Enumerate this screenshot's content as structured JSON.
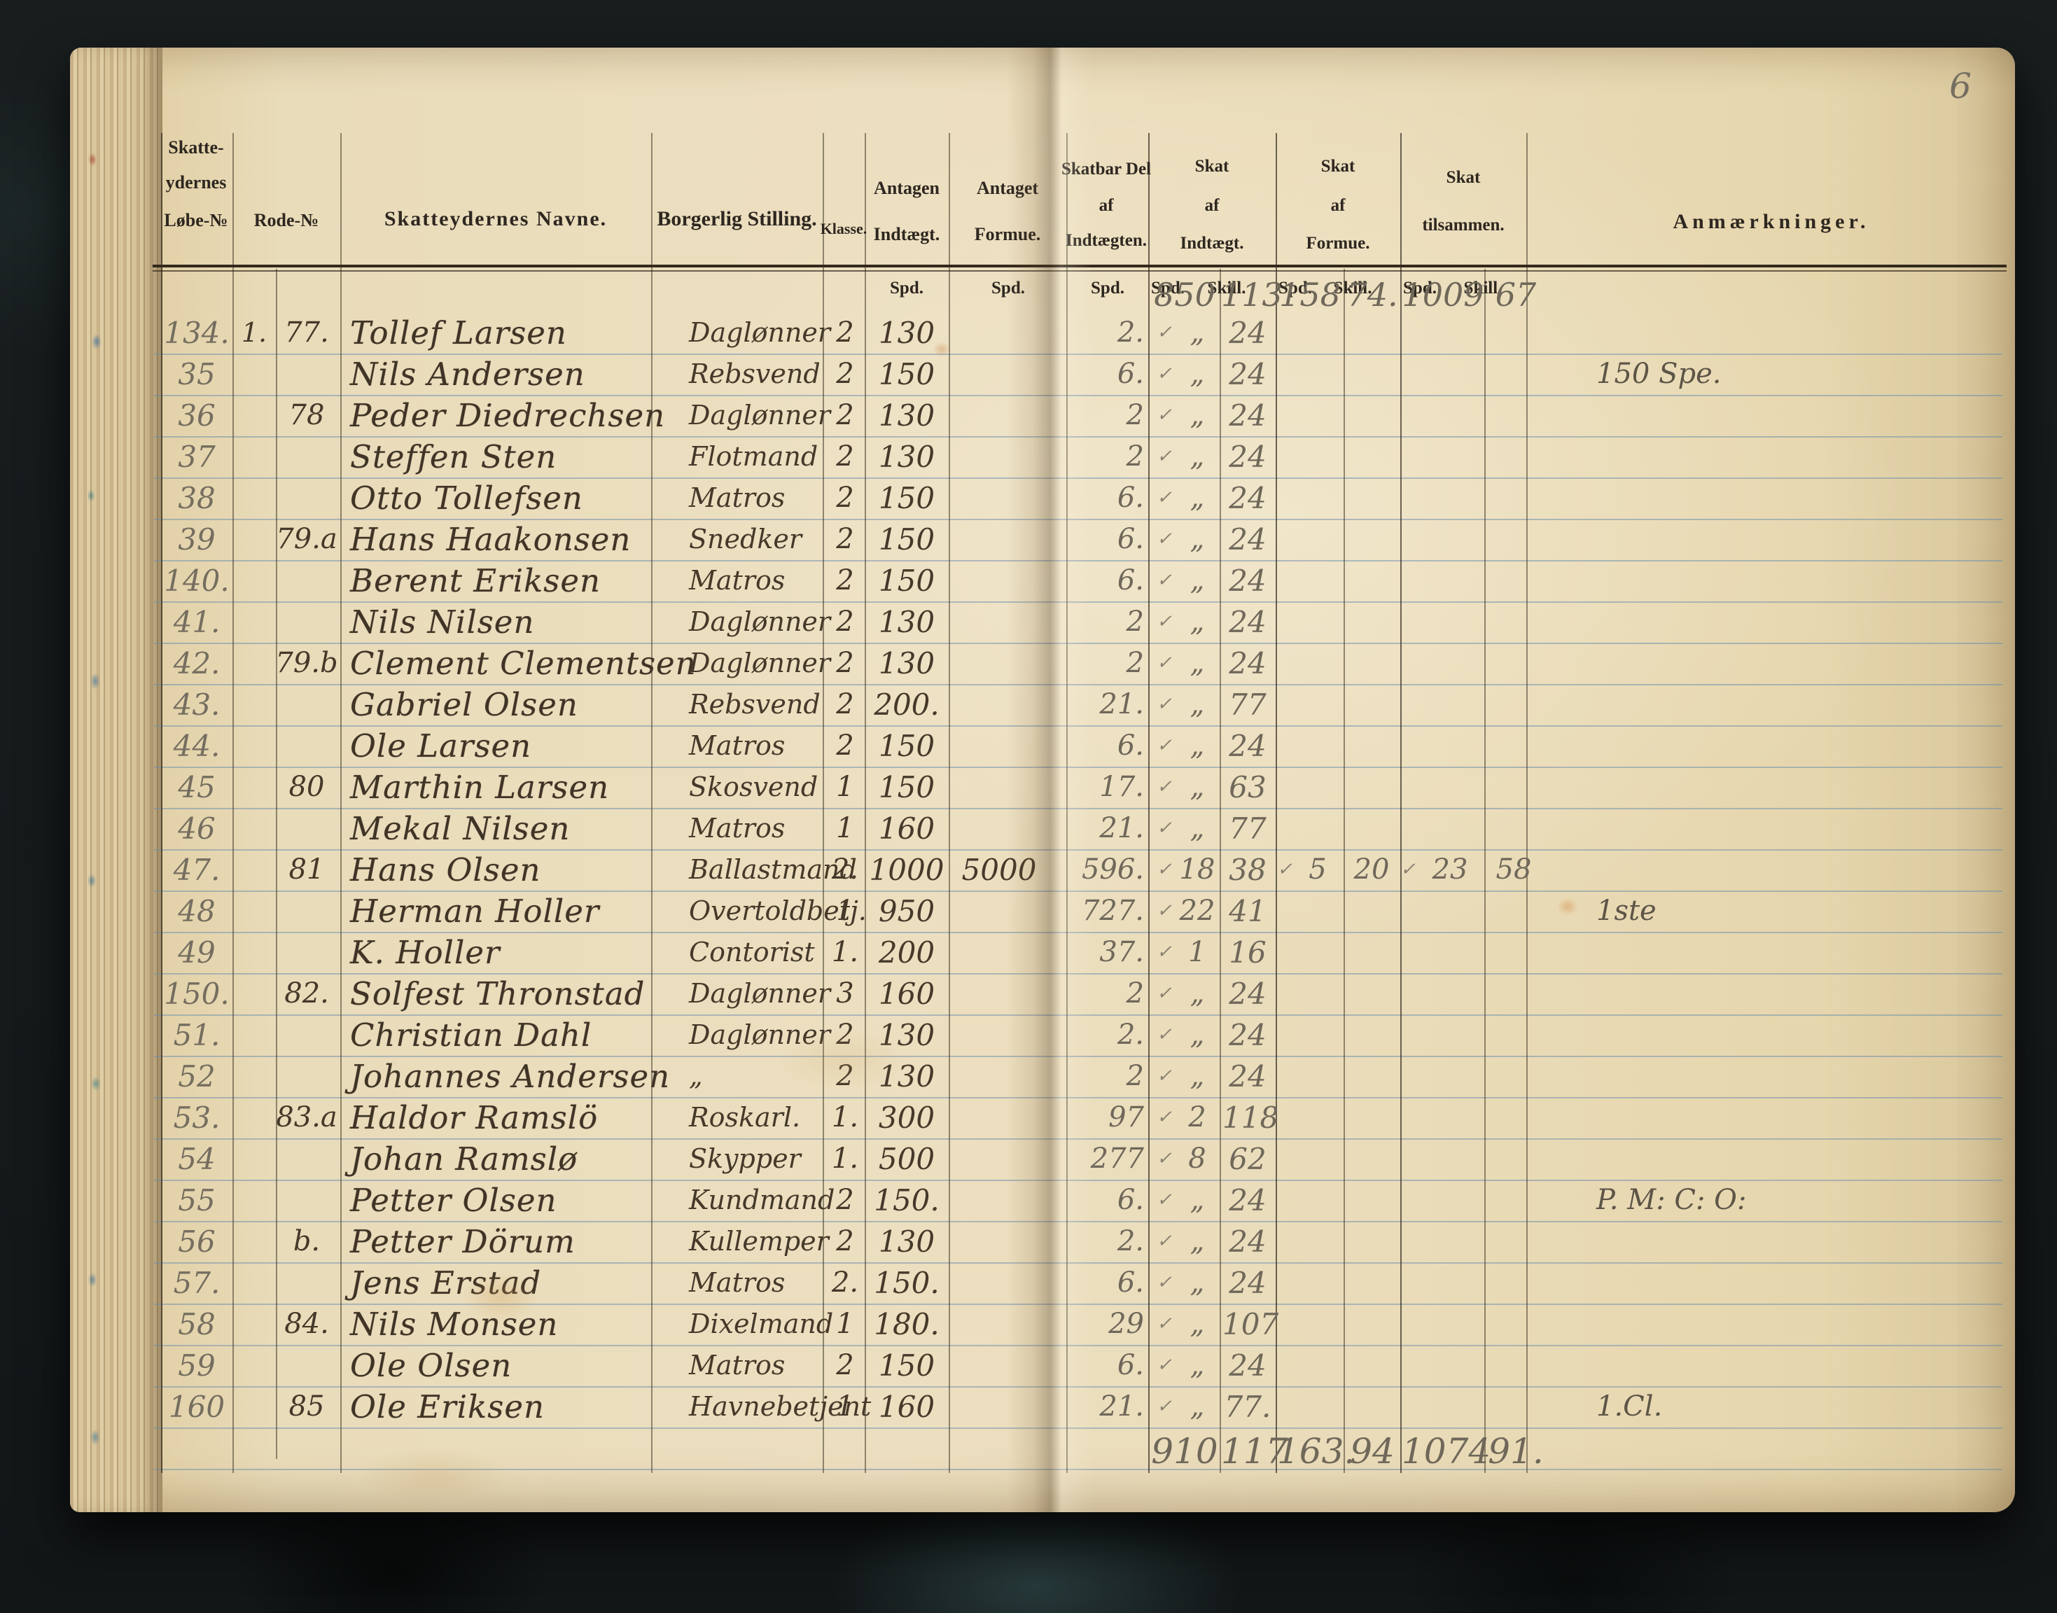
{
  "page_number": "6",
  "header": {
    "col_lobe_lines": [
      "Skatte-",
      "ydernes",
      "Løbe-№"
    ],
    "col_rode": "Rode-№",
    "col_navne": "Skatteydernes Navne.",
    "col_stilling": "Borgerlig Stilling.",
    "col_klasse": "Klasse.",
    "col_indtaegt_lines": [
      "Antagen",
      "Indtægt."
    ],
    "col_formue_lines": [
      "Antaget",
      "Formue."
    ],
    "col_skatbar_lines": [
      "Skatbar Del",
      "af",
      "Indtægten."
    ],
    "col_skat_indtaegt_lines": [
      "Skat",
      "af",
      "Indtægt."
    ],
    "col_skat_formue_lines": [
      "Skat",
      "af",
      "Formue."
    ],
    "col_skat_tilsammen_lines": [
      "Skat",
      "tilsammen."
    ],
    "col_anm": "Anmærkninger.",
    "unit_spd": "Spd.",
    "unit_skill": "Skill."
  },
  "carried": {
    "si_spd": "850",
    "si_skill": "113",
    "sf_spd": "158",
    "sf_skill": "74.",
    "t_spd": "1009",
    "t_skill": "67"
  },
  "totals": {
    "si_spd": "910",
    "si_skill": "117",
    "sf_spd": "163.",
    "sf_skill": "94",
    "t_spd": "1074",
    "t_skill": "91."
  },
  "rows": [
    {
      "lobe": "134.",
      "sub": "1.",
      "rode": "77.",
      "navn": "Tollef Larsen",
      "stilling": "Daglønner",
      "klasse": "2",
      "ind": "130",
      "form": "",
      "skatbar": "2.",
      "chk": "✓",
      "si_spd": "„",
      "si_skill": "24",
      "chk2": "",
      "sf_spd": "",
      "sf_skill": "",
      "chk3": "",
      "t_spd": "",
      "t_skill": "",
      "anm": ""
    },
    {
      "lobe": "35",
      "sub": "",
      "rode": "",
      "navn": "Nils Andersen",
      "stilling": "Rebsvend",
      "klasse": "2",
      "ind": "150",
      "form": "",
      "skatbar": "6.",
      "chk": "✓",
      "si_spd": "„",
      "si_skill": "24",
      "chk2": "",
      "sf_spd": "",
      "sf_skill": "",
      "chk3": "",
      "t_spd": "",
      "t_skill": "",
      "anm": "150 Spe."
    },
    {
      "lobe": "36",
      "sub": "",
      "rode": "78",
      "navn": "Peder Diedrechsen",
      "stilling": "Daglønner",
      "klasse": "2",
      "ind": "130",
      "form": "",
      "skatbar": "2",
      "chk": "✓",
      "si_spd": "„",
      "si_skill": "24",
      "chk2": "",
      "sf_spd": "",
      "sf_skill": "",
      "chk3": "",
      "t_spd": "",
      "t_skill": "",
      "anm": ""
    },
    {
      "lobe": "37",
      "sub": "",
      "rode": "",
      "navn": "Steffen Sten",
      "stilling": "Flotmand",
      "klasse": "2",
      "ind": "130",
      "form": "",
      "skatbar": "2",
      "chk": "✓",
      "si_spd": "„",
      "si_skill": "24",
      "chk2": "",
      "sf_spd": "",
      "sf_skill": "",
      "chk3": "",
      "t_spd": "",
      "t_skill": "",
      "anm": ""
    },
    {
      "lobe": "38",
      "sub": "",
      "rode": "",
      "navn": "Otto Tollefsen",
      "stilling": "Matros",
      "klasse": "2",
      "ind": "150",
      "form": "",
      "skatbar": "6.",
      "chk": "✓",
      "si_spd": "„",
      "si_skill": "24",
      "chk2": "",
      "sf_spd": "",
      "sf_skill": "",
      "chk3": "",
      "t_spd": "",
      "t_skill": "",
      "anm": ""
    },
    {
      "lobe": "39",
      "sub": "",
      "rode": "79.a",
      "navn": "Hans Haakonsen",
      "stilling": "Snedker",
      "klasse": "2",
      "ind": "150",
      "form": "",
      "skatbar": "6.",
      "chk": "✓",
      "si_spd": "„",
      "si_skill": "24",
      "chk2": "",
      "sf_spd": "",
      "sf_skill": "",
      "chk3": "",
      "t_spd": "",
      "t_skill": "",
      "anm": ""
    },
    {
      "lobe": "140.",
      "sub": "",
      "rode": "",
      "navn": "Berent Eriksen",
      "stilling": "Matros",
      "klasse": "2",
      "ind": "150",
      "form": "",
      "skatbar": "6.",
      "chk": "✓",
      "si_spd": "„",
      "si_skill": "24",
      "chk2": "",
      "sf_spd": "",
      "sf_skill": "",
      "chk3": "",
      "t_spd": "",
      "t_skill": "",
      "anm": ""
    },
    {
      "lobe": "41.",
      "sub": "",
      "rode": "",
      "navn": "Nils Nilsen",
      "stilling": "Daglønner",
      "klasse": "2",
      "ind": "130",
      "form": "",
      "skatbar": "2",
      "chk": "✓",
      "si_spd": "„",
      "si_skill": "24",
      "chk2": "",
      "sf_spd": "",
      "sf_skill": "",
      "chk3": "",
      "t_spd": "",
      "t_skill": "",
      "anm": ""
    },
    {
      "lobe": "42.",
      "sub": "",
      "rode": "79.b",
      "navn": "Clement Clementsen",
      "stilling": "Daglønner",
      "klasse": "2",
      "ind": "130",
      "form": "",
      "skatbar": "2",
      "chk": "✓",
      "si_spd": "„",
      "si_skill": "24",
      "chk2": "",
      "sf_spd": "",
      "sf_skill": "",
      "chk3": "",
      "t_spd": "",
      "t_skill": "",
      "anm": ""
    },
    {
      "lobe": "43.",
      "sub": "",
      "rode": "",
      "navn": "Gabriel Olsen",
      "stilling": "Rebsvend",
      "klasse": "2",
      "ind": "200.",
      "form": "",
      "skatbar": "21.",
      "chk": "✓",
      "si_spd": "„",
      "si_skill": "77",
      "chk2": "",
      "sf_spd": "",
      "sf_skill": "",
      "chk3": "",
      "t_spd": "",
      "t_skill": "",
      "anm": ""
    },
    {
      "lobe": "44.",
      "sub": "",
      "rode": "",
      "navn": "Ole Larsen",
      "stilling": "Matros",
      "klasse": "2",
      "ind": "150",
      "form": "",
      "skatbar": "6.",
      "chk": "✓",
      "si_spd": "„",
      "si_skill": "24",
      "chk2": "",
      "sf_spd": "",
      "sf_skill": "",
      "chk3": "",
      "t_spd": "",
      "t_skill": "",
      "anm": ""
    },
    {
      "lobe": "45",
      "sub": "",
      "rode": "80",
      "navn": "Marthin Larsen",
      "stilling": "Skosvend",
      "klasse": "1",
      "ind": "150",
      "form": "",
      "skatbar": "17.",
      "chk": "✓",
      "si_spd": "„",
      "si_skill": "63",
      "chk2": "",
      "sf_spd": "",
      "sf_skill": "",
      "chk3": "",
      "t_spd": "",
      "t_skill": "",
      "anm": ""
    },
    {
      "lobe": "46",
      "sub": "",
      "rode": "",
      "navn": "Mekal Nilsen",
      "stilling": "Matros",
      "klasse": "1",
      "ind": "160",
      "form": "",
      "skatbar": "21.",
      "chk": "✓",
      "si_spd": "„",
      "si_skill": "77",
      "chk2": "",
      "sf_spd": "",
      "sf_skill": "",
      "chk3": "",
      "t_spd": "",
      "t_skill": "",
      "anm": ""
    },
    {
      "lobe": "47.",
      "sub": "",
      "rode": "81",
      "navn": "Hans Olsen",
      "stilling": "Ballastmand",
      "klasse": "2.",
      "ind": "1000",
      "form": "5000",
      "skatbar": "596.",
      "chk": "✓",
      "si_spd": "18",
      "si_skill": "38",
      "chk2": "✓",
      "sf_spd": "5",
      "sf_skill": "20",
      "chk3": "✓",
      "t_spd": "23",
      "t_skill": "58",
      "anm": ""
    },
    {
      "lobe": "48",
      "sub": "",
      "rode": "",
      "navn": "Herman Holler",
      "stilling": "Overtoldbetj.",
      "klasse": "1",
      "ind": "950",
      "form": "",
      "skatbar": "727.",
      "chk": "✓",
      "si_spd": "22",
      "si_skill": "41",
      "chk2": "",
      "sf_spd": "",
      "sf_skill": "",
      "chk3": "",
      "t_spd": "",
      "t_skill": "",
      "anm": "1ste"
    },
    {
      "lobe": "49",
      "sub": "",
      "rode": "",
      "navn": "K. Holler",
      "stilling": "Contorist",
      "klasse": "1.",
      "ind": "200",
      "form": "",
      "skatbar": "37.",
      "chk": "✓",
      "si_spd": "1",
      "si_skill": "16",
      "chk2": "",
      "sf_spd": "",
      "sf_skill": "",
      "chk3": "",
      "t_spd": "",
      "t_skill": "",
      "anm": ""
    },
    {
      "lobe": "150.",
      "sub": "",
      "rode": "82.",
      "navn": "Solfest Thronstad",
      "stilling": "Daglønner",
      "klasse": "3",
      "ind": "160",
      "form": "",
      "skatbar": "2",
      "chk": "✓",
      "si_spd": "„",
      "si_skill": "24",
      "chk2": "",
      "sf_spd": "",
      "sf_skill": "",
      "chk3": "",
      "t_spd": "",
      "t_skill": "",
      "anm": ""
    },
    {
      "lobe": "51.",
      "sub": "",
      "rode": "",
      "navn": "Christian Dahl",
      "stilling": "Daglønner",
      "klasse": "2",
      "ind": "130",
      "form": "",
      "skatbar": "2.",
      "chk": "✓",
      "si_spd": "„",
      "si_skill": "24",
      "chk2": "",
      "sf_spd": "",
      "sf_skill": "",
      "chk3": "",
      "t_spd": "",
      "t_skill": "",
      "anm": ""
    },
    {
      "lobe": "52",
      "sub": "",
      "rode": "",
      "navn": "Johannes Andersen",
      "stilling": "„",
      "klasse": "2",
      "ind": "130",
      "form": "",
      "skatbar": "2",
      "chk": "✓",
      "si_spd": "„",
      "si_skill": "24",
      "chk2": "",
      "sf_spd": "",
      "sf_skill": "",
      "chk3": "",
      "t_spd": "",
      "t_skill": "",
      "anm": ""
    },
    {
      "lobe": "53.",
      "sub": "",
      "rode": "83.a",
      "navn": "Haldor Ramslö",
      "stilling": "Roskarl.",
      "klasse": "1.",
      "ind": "300",
      "form": "",
      "skatbar": "97",
      "chk": "✓",
      "si_spd": "2",
      "si_skill": "118",
      "chk2": "",
      "sf_spd": "",
      "sf_skill": "",
      "chk3": "",
      "t_spd": "",
      "t_skill": "",
      "anm": ""
    },
    {
      "lobe": "54",
      "sub": "",
      "rode": "",
      "navn": "Johan Ramslø",
      "stilling": "Skypper",
      "klasse": "1.",
      "ind": "500",
      "form": "",
      "skatbar": "277",
      "chk": "✓",
      "si_spd": "8",
      "si_skill": "62",
      "chk2": "",
      "sf_spd": "",
      "sf_skill": "",
      "chk3": "",
      "t_spd": "",
      "t_skill": "",
      "anm": ""
    },
    {
      "lobe": "55",
      "sub": "",
      "rode": "",
      "navn": "Petter Olsen",
      "stilling": "Kundmand",
      "klasse": "2",
      "ind": "150.",
      "form": "",
      "skatbar": "6.",
      "chk": "✓",
      "si_spd": "„",
      "si_skill": "24",
      "chk2": "",
      "sf_spd": "",
      "sf_skill": "",
      "chk3": "",
      "t_spd": "",
      "t_skill": "",
      "anm": "P. M: C: O:"
    },
    {
      "lobe": "56",
      "sub": "",
      "rode": "b.",
      "navn": "Petter Dörum",
      "stilling": "Kullemper",
      "klasse": "2",
      "ind": "130",
      "form": "",
      "skatbar": "2.",
      "chk": "✓",
      "si_spd": "„",
      "si_skill": "24",
      "chk2": "",
      "sf_spd": "",
      "sf_skill": "",
      "chk3": "",
      "t_spd": "",
      "t_skill": "",
      "anm": ""
    },
    {
      "lobe": "57.",
      "sub": "",
      "rode": "",
      "navn": "Jens Erstad",
      "stilling": "Matros",
      "klasse": "2.",
      "ind": "150.",
      "form": "",
      "skatbar": "6.",
      "chk": "✓",
      "si_spd": "„",
      "si_skill": "24",
      "chk2": "",
      "sf_spd": "",
      "sf_skill": "",
      "chk3": "",
      "t_spd": "",
      "t_skill": "",
      "anm": ""
    },
    {
      "lobe": "58",
      "sub": "",
      "rode": "84.",
      "navn": "Nils Monsen",
      "stilling": "Dixelmand",
      "klasse": "1",
      "ind": "180.",
      "form": "",
      "skatbar": "29",
      "chk": "✓",
      "si_spd": "„",
      "si_skill": "107",
      "chk2": "",
      "sf_spd": "",
      "sf_skill": "",
      "chk3": "",
      "t_spd": "",
      "t_skill": "",
      "anm": ""
    },
    {
      "lobe": "59",
      "sub": "",
      "rode": "",
      "navn": "Ole Olsen",
      "stilling": "Matros",
      "klasse": "2",
      "ind": "150",
      "form": "",
      "skatbar": "6.",
      "chk": "✓",
      "si_spd": "„",
      "si_skill": "24",
      "chk2": "",
      "sf_spd": "",
      "sf_skill": "",
      "chk3": "",
      "t_spd": "",
      "t_skill": "",
      "anm": ""
    },
    {
      "lobe": "160",
      "sub": "",
      "rode": "85",
      "navn": "Ole Eriksen",
      "stilling": "Havnebetjent",
      "klasse": "1",
      "ind": "160",
      "form": "",
      "skatbar": "21.",
      "chk": "✓",
      "si_spd": "„",
      "si_skill": "77.",
      "chk2": "",
      "sf_spd": "",
      "sf_skill": "",
      "chk3": "",
      "t_spd": "",
      "t_skill": "",
      "anm": "1.Cl."
    }
  ]
}
